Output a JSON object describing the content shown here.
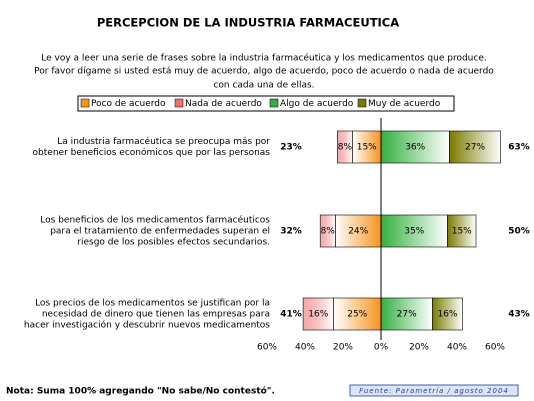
{
  "chart_data": {
    "type": "diverging-bar",
    "title": "PERCEPCION DE LA INDUSTRIA FARMACEUTICA",
    "subtitle": [
      "Le voy a leer una serie de frases sobre la industria farmacéutica y los medicamentos que produce.",
      "Por favor dígame si usted está muy de acuerdo, algo de acuerdo, poco de acuerdo o nada de acuerdo",
      "con cada una de ellas."
    ],
    "categories": [
      [
        "La industria farmacéutica se preocupa más por",
        "obtener beneficios económicos que por las personas"
      ],
      [
        "Los beneficios de los medicamentos farmacéuticos",
        "para el tratamiento de enfermedades superan el",
        "riesgo de los posibles efectos secundarios."
      ],
      [
        "Los precios de los medicamentos se justifican por la",
        "necesidad de dinero que tienen las empresas para",
        "hacer investigación y descubrir nuevos medicamentos"
      ]
    ],
    "series": [
      {
        "name": "Poco de acuerdo",
        "color": "#f7941d",
        "values": [
          15,
          24,
          25
        ],
        "value_labels": [
          "15%",
          "24%",
          "25%"
        ]
      },
      {
        "name": "Nada de acuerdo",
        "color": "#f07070",
        "values": [
          8,
          8,
          16
        ],
        "value_labels": [
          "8%",
          "8%",
          "16%"
        ]
      },
      {
        "name": "Algo de acuerdo",
        "color": "#33b040",
        "values": [
          36,
          35,
          27
        ],
        "value_labels": [
          "36%",
          "35%",
          "27%"
        ]
      },
      {
        "name": "Muy de acuerdo",
        "color": "#7a7a00",
        "values": [
          27,
          15,
          16
        ],
        "value_labels": [
          "27%",
          "15%",
          "16%"
        ]
      }
    ],
    "left_totals": [
      23,
      32,
      41
    ],
    "left_total_labels": [
      "23%",
      "32%",
      "41%"
    ],
    "right_totals": [
      63,
      50,
      43
    ],
    "right_total_labels": [
      "63%",
      "50%",
      "43%"
    ],
    "xlim": [
      -60,
      60
    ],
    "xticks": [
      {
        "value": -60,
        "label": "60%"
      },
      {
        "value": -40,
        "label": "40%"
      },
      {
        "value": -20,
        "label": "20%"
      },
      {
        "value": 0,
        "label": "0%"
      },
      {
        "value": 20,
        "label": "20%"
      },
      {
        "value": 40,
        "label": "40%"
      },
      {
        "value": 60,
        "label": "60%"
      }
    ],
    "note": "Nota: Suma 100% agregando \"No sabe/No contestó\".",
    "source": "Fuente: Parametría / agosto 2004"
  }
}
